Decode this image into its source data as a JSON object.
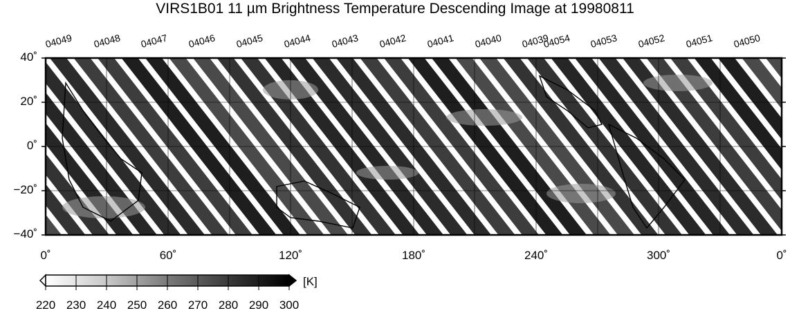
{
  "title": "VIRS1B01 11 µm Brightness Temperature Descending Image at 19980811",
  "map": {
    "y_ticks": [
      "40˚",
      "20˚",
      "0˚",
      "−20˚",
      "−40˚"
    ],
    "x_ticks": [
      "0˚",
      "60˚",
      "120˚",
      "180˚",
      "240˚",
      "300˚",
      "0˚"
    ],
    "orbit_numbers": [
      "04049",
      "04048",
      "04047",
      "04046",
      "04045",
      "04044",
      "04043",
      "04042",
      "04041",
      "04040",
      "04039",
      "04054",
      "04053",
      "04052",
      "04051",
      "04050"
    ],
    "lon_range": [
      0,
      360
    ],
    "lat_range": [
      -40,
      40
    ],
    "grid": true,
    "colormap": "grayscale (white = cold, black = warm)"
  },
  "colorbar": {
    "unit": "[K]",
    "ticks": [
      "220",
      "230",
      "240",
      "250",
      "260",
      "270",
      "280",
      "290",
      "300"
    ],
    "min": 220,
    "max": 300,
    "low_color": "#ffffff",
    "high_color": "#000000"
  }
}
